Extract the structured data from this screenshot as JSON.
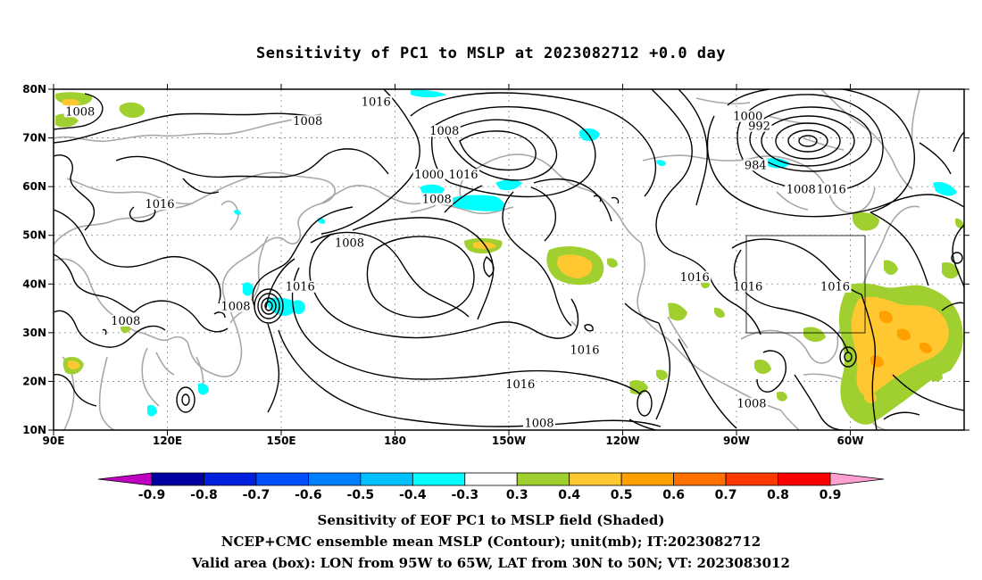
{
  "title": "Sensitivity of PC1 to MSLP at 2023082712 +0.0 day",
  "lat_labels": [
    "80N",
    "70N",
    "60N",
    "50N",
    "40N",
    "30N",
    "20N",
    "10N"
  ],
  "lon_labels": [
    "90E",
    "120E",
    "150E",
    "180",
    "150W",
    "120W",
    "90W",
    "60W"
  ],
  "contour_labels": [
    {
      "text": "1008",
      "lon": 97,
      "lat": 75
    },
    {
      "text": "1008",
      "lon": 157,
      "lat": 73
    },
    {
      "text": "1016",
      "lon": 118,
      "lat": 56
    },
    {
      "text": "1008",
      "lon": 168,
      "lat": 48
    },
    {
      "text": "1016",
      "lon": 155,
      "lat": 39
    },
    {
      "text": "1008",
      "lon": 109,
      "lat": 32
    },
    {
      "text": "1008",
      "lon": 138,
      "lat": 35
    },
    {
      "text": "1016",
      "lon": 175,
      "lat": 77
    },
    {
      "text": "1008",
      "lon": -167,
      "lat": 71
    },
    {
      "text": "1000",
      "lon": -171,
      "lat": 62
    },
    {
      "text": "1008",
      "lon": -169,
      "lat": 57
    },
    {
      "text": "1016",
      "lon": -162,
      "lat": 62
    },
    {
      "text": "1016",
      "lon": -130,
      "lat": 26
    },
    {
      "text": "1016",
      "lon": -147,
      "lat": 19
    },
    {
      "text": "1008",
      "lon": -142,
      "lat": 11
    },
    {
      "text": "1000",
      "lon": -87,
      "lat": 74
    },
    {
      "text": "992",
      "lon": -84,
      "lat": 72
    },
    {
      "text": "984",
      "lon": -85,
      "lat": 64
    },
    {
      "text": "1008",
      "lon": -73,
      "lat": 59
    },
    {
      "text": "1016",
      "lon": -65,
      "lat": 59
    },
    {
      "text": "1016",
      "lon": -101,
      "lat": 41
    },
    {
      "text": "1016",
      "lon": -87,
      "lat": 39
    },
    {
      "text": "1016",
      "lon": -64,
      "lat": 39
    },
    {
      "text": "1008",
      "lon": -86,
      "lat": 15
    }
  ],
  "colorbar": {
    "labels": [
      "-0.9",
      "-0.8",
      "-0.7",
      "-0.6",
      "-0.5",
      "-0.4",
      "-0.3",
      "0.3",
      "0.4",
      "0.5",
      "0.6",
      "0.7",
      "0.8",
      "0.9"
    ],
    "colors": [
      "#c000c0",
      "#0000a0",
      "#0020e0",
      "#0050ff",
      "#0080ff",
      "#00c0ff",
      "#00ffff",
      "#ffffff",
      "#a0d030",
      "#ffc830",
      "#ffa000",
      "#ff7000",
      "#ff3800",
      "#ff0000",
      "#ffa0d0"
    ]
  },
  "footer": {
    "line1": "Sensitivity of EOF PC1 to MSLP field (Shaded)",
    "line2": "NCEP+CMC ensemble mean MSLP (Contour); unit(mb); IT:2023082712",
    "line3": "Valid area (box): LON from 95W to 65W, LAT from 30N to 50N; VT: 2023083012"
  }
}
